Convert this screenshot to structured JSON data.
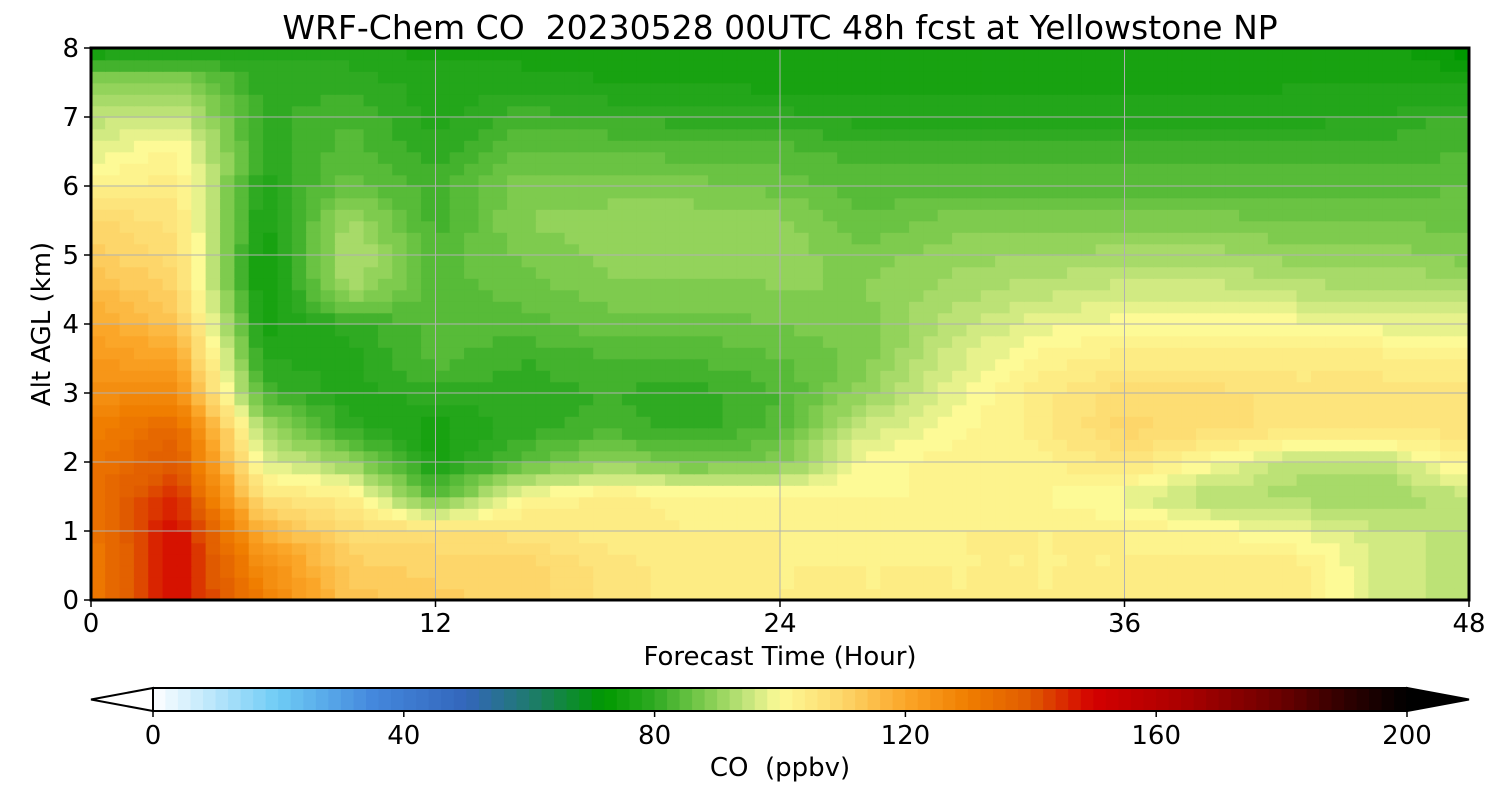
{
  "chart_data": {
    "type": "heatmap",
    "title": "WRF-Chem CO  20230528 00UTC 48h fcst at Yellowstone NP",
    "xlabel": "Forecast Time (Hour)",
    "ylabel": "Alt AGL (km)",
    "xlim": [
      0,
      48
    ],
    "ylim": [
      0,
      8
    ],
    "xticks": [
      0,
      12,
      24,
      36,
      48
    ],
    "yticks": [
      0,
      1,
      2,
      3,
      4,
      5,
      6,
      7,
      8
    ],
    "grid": true,
    "x": [
      0,
      3,
      6,
      9,
      12,
      15,
      18,
      21,
      24,
      27,
      30,
      33,
      36,
      39,
      42,
      45,
      48
    ],
    "y": [
      0,
      0.5,
      1,
      1.5,
      2,
      2.5,
      3,
      3.5,
      4,
      4.5,
      5,
      5.5,
      6,
      6.5,
      7,
      7.5,
      8
    ],
    "z_units": "ppbv",
    "z": [
      [
        130,
        150,
        130,
        114,
        112,
        110,
        106,
        104,
        103,
        103,
        103,
        103,
        103,
        104,
        104,
        96,
        94
      ],
      [
        130,
        150,
        126,
        112,
        110,
        110,
        106,
        104,
        103,
        103,
        103,
        103,
        103,
        104,
        104,
        96,
        94
      ],
      [
        132,
        150,
        118,
        108,
        108,
        106,
        104,
        103,
        103,
        102,
        103,
        103,
        103,
        101,
        99,
        95,
        95
      ],
      [
        134,
        146,
        106,
        104,
        84,
        100,
        104,
        102,
        102,
        101,
        101,
        101,
        98,
        93,
        92,
        91,
        94
      ],
      [
        132,
        140,
        98,
        90,
        76,
        84,
        90,
        86,
        88,
        100,
        102,
        102,
        106,
        100,
        94,
        94,
        103
      ],
      [
        130,
        136,
        92,
        80,
        76,
        80,
        82,
        80,
        84,
        96,
        100,
        104,
        110,
        108,
        106,
        106,
        106
      ],
      [
        126,
        126,
        82,
        78,
        80,
        80,
        81,
        80,
        83,
        90,
        98,
        104,
        108,
        108,
        106,
        106,
        106
      ],
      [
        124,
        120,
        79,
        78,
        84,
        81,
        83,
        83,
        85,
        88,
        96,
        102,
        104,
        104,
        104,
        104,
        103
      ],
      [
        120,
        114,
        76,
        80,
        84,
        84,
        86,
        86,
        87,
        88,
        94,
        98,
        100,
        100,
        100,
        98,
        98
      ],
      [
        116,
        110,
        74,
        92,
        84,
        86,
        88,
        88,
        89,
        89,
        92,
        94,
        96,
        96,
        94,
        93,
        93
      ],
      [
        112,
        108,
        74,
        94,
        84,
        87,
        90,
        90,
        90,
        88,
        90,
        91,
        92,
        92,
        90,
        90,
        88
      ],
      [
        110,
        106,
        76,
        92,
        82,
        89,
        90,
        90,
        90,
        85,
        88,
        88,
        88,
        88,
        87,
        87,
        86
      ],
      [
        102,
        104,
        78,
        86,
        82,
        88,
        88,
        88,
        86,
        84,
        84,
        84,
        84,
        84,
        84,
        84,
        85
      ],
      [
        98,
        102,
        80,
        84,
        80,
        85,
        85,
        84,
        84,
        82,
        82,
        82,
        82,
        82,
        82,
        82,
        83
      ],
      [
        94,
        96,
        80,
        83,
        78,
        82,
        81,
        80,
        80,
        78,
        78,
        78,
        78,
        78,
        78,
        79,
        82
      ],
      [
        90,
        90,
        80,
        80,
        78,
        78,
        77,
        77,
        76,
        76,
        76,
        76,
        76,
        76,
        77,
        77,
        76
      ],
      [
        74,
        76,
        78,
        78,
        76,
        76,
        76,
        75,
        75,
        75,
        75,
        75,
        75,
        75,
        75,
        76,
        72
      ]
    ],
    "colorbar": {
      "label": "CO  (ppbv)",
      "min": 0,
      "max": 200,
      "ticks": [
        0,
        40,
        80,
        120,
        160,
        200
      ],
      "extend": "both",
      "stops": [
        {
          "v": 0,
          "c": "#ffffff"
        },
        {
          "v": 20,
          "c": "#6ecbf5"
        },
        {
          "v": 35,
          "c": "#4488dd"
        },
        {
          "v": 50,
          "c": "#3366bb"
        },
        {
          "v": 60,
          "c": "#1f7a6f"
        },
        {
          "v": 72,
          "c": "#009900"
        },
        {
          "v": 80,
          "c": "#2faa22"
        },
        {
          "v": 88,
          "c": "#7ecb4e"
        },
        {
          "v": 95,
          "c": "#c6e67d"
        },
        {
          "v": 100,
          "c": "#fdfa96"
        },
        {
          "v": 110,
          "c": "#fdd66a"
        },
        {
          "v": 120,
          "c": "#fba628"
        },
        {
          "v": 130,
          "c": "#f07e00"
        },
        {
          "v": 140,
          "c": "#e05a00"
        },
        {
          "v": 150,
          "c": "#d40000"
        },
        {
          "v": 165,
          "c": "#a80000"
        },
        {
          "v": 180,
          "c": "#6a0000"
        },
        {
          "v": 190,
          "c": "#300000"
        },
        {
          "v": 200,
          "c": "#000000"
        }
      ]
    }
  }
}
